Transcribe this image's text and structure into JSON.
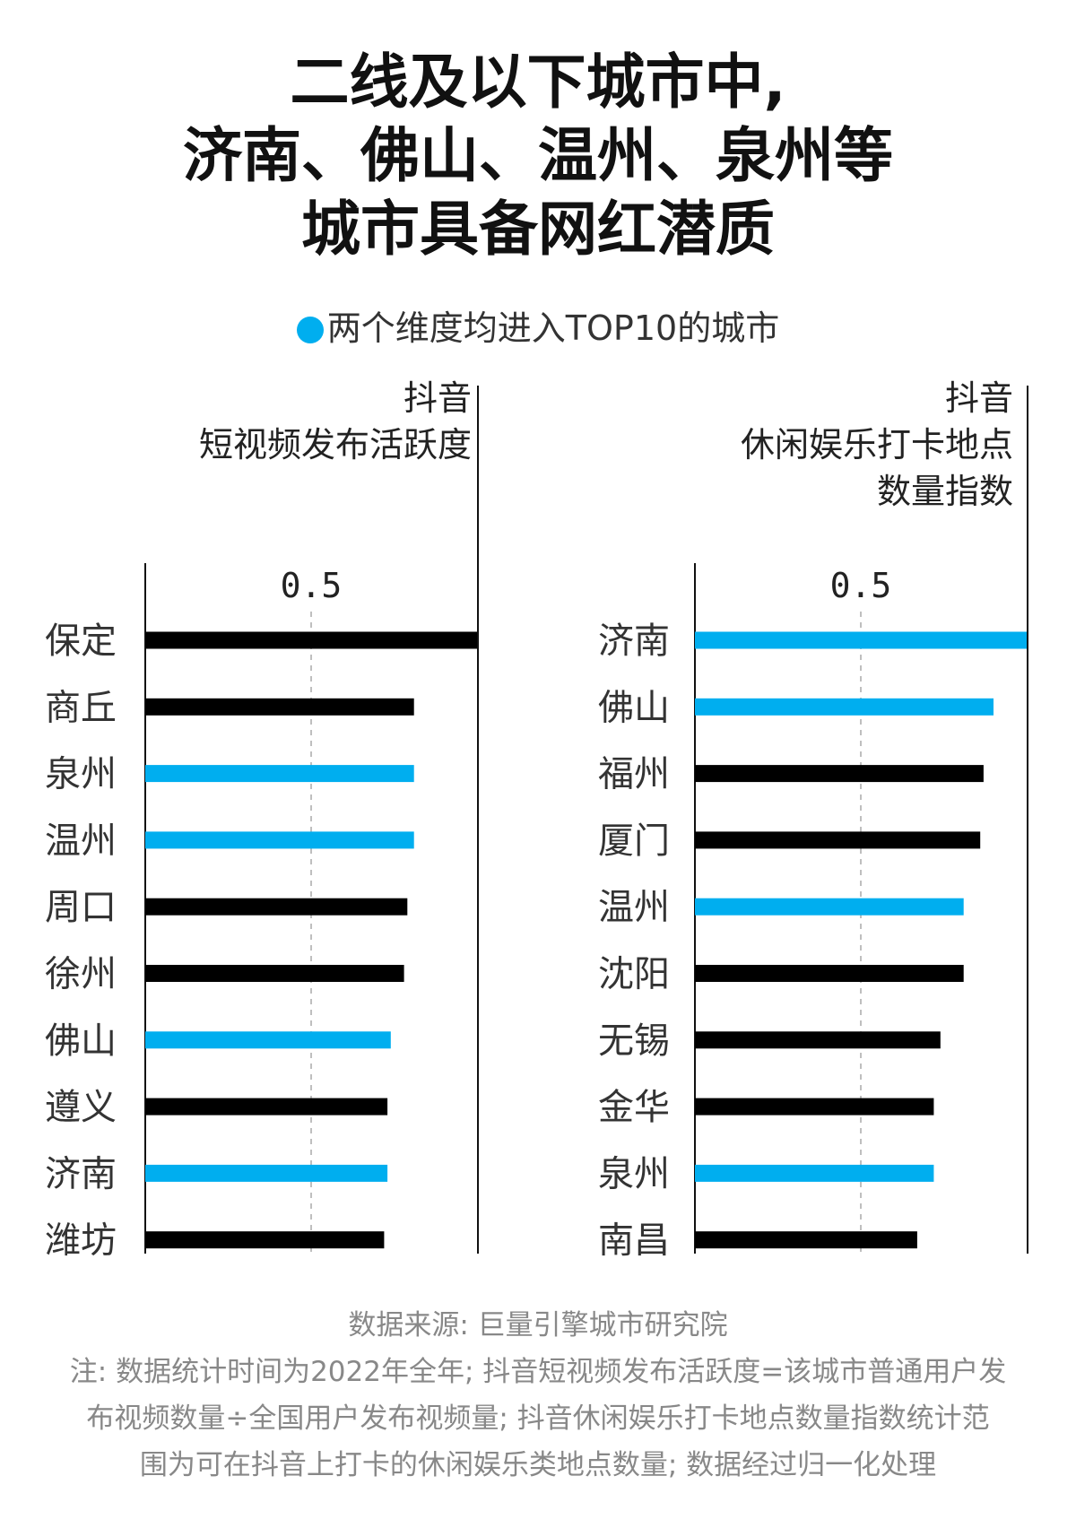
{
  "title_lines": [
    "二线及以下城市中,",
    "济南、佛山、温州、泉州等",
    "城市具备网红潜质"
  ],
  "legend": "两个维度均进入TOP10的城市",
  "colors": {
    "highlight": "#00aeef",
    "normal": "#000000"
  },
  "chart_data": [
    {
      "type": "bar",
      "title_lines": [
        "抖音",
        "短视频发布活跃度"
      ],
      "categories": [
        "保定",
        "商丘",
        "泉州",
        "温州",
        "周口",
        "徐州",
        "佛山",
        "遵义",
        "济南",
        "潍坊"
      ],
      "values": [
        1.0,
        0.81,
        0.81,
        0.81,
        0.79,
        0.78,
        0.74,
        0.73,
        0.73,
        0.72
      ],
      "highlight": [
        false,
        false,
        true,
        true,
        false,
        false,
        true,
        false,
        true,
        false
      ],
      "xlim": [
        0,
        1
      ],
      "ticks": [
        {
          "value": 0.5,
          "label": "0.5"
        }
      ]
    },
    {
      "type": "bar",
      "title_lines": [
        "抖音",
        "休闲娱乐打卡地点",
        "数量指数"
      ],
      "categories": [
        "济南",
        "佛山",
        "福州",
        "厦门",
        "温州",
        "沈阳",
        "无锡",
        "金华",
        "泉州",
        "南昌"
      ],
      "values": [
        1.0,
        0.9,
        0.87,
        0.86,
        0.81,
        0.81,
        0.74,
        0.72,
        0.72,
        0.67
      ],
      "highlight": [
        true,
        true,
        false,
        false,
        true,
        false,
        false,
        false,
        true,
        false
      ],
      "xlim": [
        0,
        1
      ],
      "ticks": [
        {
          "value": 0.5,
          "label": "0.5"
        }
      ]
    }
  ],
  "footnotes": [
    "数据来源: 巨量引擎城市研究院",
    "注: 数据统计时间为2022年全年; 抖音短视频发布活跃度=该城市普通用户发",
    "布视频数量÷全国用户发布视频量; 抖音休闲娱乐打卡地点数量指数统计范",
    "围为可在抖音上打卡的休闲娱乐类地点数量; 数据经过归一化处理"
  ]
}
